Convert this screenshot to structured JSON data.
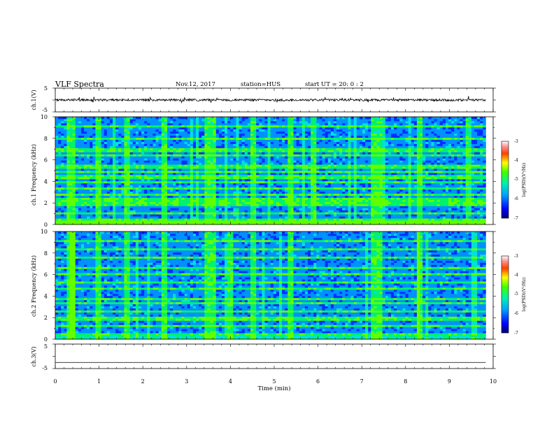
{
  "header": {
    "title": "VLF Spectra",
    "date": "Nov.12, 2017",
    "station": "station=HUS",
    "start_ut": "start  UT =   20: 0  : 2"
  },
  "chart_data": [
    {
      "type": "line",
      "panel": "ch1-waveform",
      "ylabel": "ch.1(V)",
      "ylim": [
        -5,
        5
      ],
      "yticks": [
        "5",
        "-5"
      ],
      "x": [
        0,
        9.83
      ],
      "series": [
        {
          "values": [
            0,
            0
          ]
        }
      ]
    },
    {
      "type": "heatmap",
      "panel": "ch1-spectrogram",
      "ylabel": "ch.1 Frequency (kHz)",
      "xlim": [
        0,
        10
      ],
      "ylim": [
        0,
        10
      ],
      "yticks": [
        "0",
        "2",
        "4",
        "6",
        "8",
        "10"
      ],
      "data_extent_min": 9.83,
      "colorbar": {
        "label": "log(PSD)(V²/Hz)",
        "range": [
          -7,
          -3
        ],
        "ticks": [
          "-3",
          "-4",
          "-5",
          "-6",
          "-7"
        ]
      },
      "bright_lines_khz": [
        0.2,
        0.5,
        1.0,
        1.9,
        2.3,
        2.8,
        3.3,
        3.9,
        4.4,
        4.9,
        5.4,
        6.4,
        6.9,
        8.0,
        9.2
      ],
      "bright_columns_min": [
        0.3,
        0.4,
        1.0,
        1.65,
        2.5,
        3.5,
        3.6,
        4.5,
        5.4,
        5.9,
        7.3,
        7.4,
        8.3,
        9.4
      ]
    },
    {
      "type": "heatmap",
      "panel": "ch2-spectrogram",
      "ylabel": "ch.2 Frequency (kHz)",
      "xlim": [
        0,
        10
      ],
      "ylim": [
        0,
        10
      ],
      "yticks": [
        "0",
        "2",
        "4",
        "6",
        "8",
        "10"
      ],
      "data_extent_min": 9.83,
      "colorbar": {
        "label": "log(PSD)(V²/Hz)",
        "range": [
          -7,
          -3
        ],
        "ticks": [
          "-3",
          "-4",
          "-5",
          "-6",
          "-7"
        ]
      },
      "bright_lines_khz": [
        0.5,
        1.2,
        1.9,
        2.6,
        3.4,
        3.8,
        4.7,
        5.3,
        6.1,
        6.6,
        7.6,
        8.3,
        9.1
      ],
      "bright_columns_min": [
        0.3,
        0.4,
        1.0,
        1.65,
        2.5,
        3.5,
        3.6,
        4.0,
        4.5,
        5.4,
        7.3,
        7.4,
        8.3
      ]
    },
    {
      "type": "line",
      "panel": "ch3-waveform",
      "ylabel": "ch.3(V)",
      "ylim": [
        -5,
        5
      ],
      "yticks": [
        "5",
        "0",
        "-5"
      ],
      "x": [
        0,
        9.83
      ],
      "series": [
        {
          "values": [
            -2.5,
            -2.5
          ]
        }
      ]
    }
  ],
  "xaxis": {
    "label": "Time  (min)",
    "ticks": [
      "0",
      "1",
      "2",
      "3",
      "4",
      "5",
      "6",
      "7",
      "8",
      "9",
      "10"
    ]
  },
  "colormap": [
    "#000070",
    "#0000cc",
    "#0030ff",
    "#0090ff",
    "#00e0e0",
    "#00f070",
    "#60ff00",
    "#ffff00",
    "#ff8000",
    "#ff0000",
    "#ffffff"
  ]
}
